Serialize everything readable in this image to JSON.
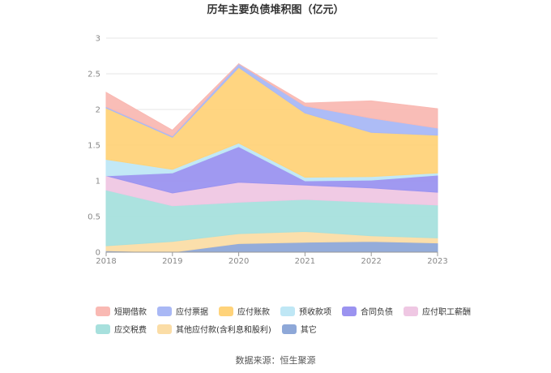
{
  "chart_data": {
    "type": "area",
    "stacked": true,
    "title": "历年主要负债堆积图（亿元）",
    "x": [
      "2018",
      "2019",
      "2020",
      "2021",
      "2022",
      "2023"
    ],
    "ylim": [
      0,
      3
    ],
    "yticks": [
      "0",
      "0.5",
      "1",
      "1.5",
      "2",
      "2.5",
      "3"
    ],
    "grid": true,
    "legend_position": "bottom",
    "series": [
      {
        "name": "其它",
        "color": "#8ea8d8",
        "values": [
          0.02,
          0.0,
          0.12,
          0.14,
          0.15,
          0.13
        ]
      },
      {
        "name": "其他应付款(含利息和股利)",
        "color": "#fbdda6",
        "values": [
          0.07,
          0.15,
          0.14,
          0.15,
          0.08,
          0.07
        ]
      },
      {
        "name": "应交税费",
        "color": "#a7e0dd",
        "values": [
          0.78,
          0.5,
          0.44,
          0.45,
          0.47,
          0.46
        ]
      },
      {
        "name": "应付职工薪酬",
        "color": "#efc7e3",
        "values": [
          0.2,
          0.18,
          0.28,
          0.2,
          0.2,
          0.18
        ]
      },
      {
        "name": "合同负债",
        "color": "#9b93f0",
        "values": [
          0.0,
          0.28,
          0.5,
          0.06,
          0.11,
          0.24
        ]
      },
      {
        "name": "预收款项",
        "color": "#bfe7f5",
        "values": [
          0.23,
          0.05,
          0.05,
          0.05,
          0.05,
          0.03
        ]
      },
      {
        "name": "应付账款",
        "color": "#ffd37a",
        "values": [
          0.72,
          0.45,
          1.06,
          0.9,
          0.62,
          0.53
        ]
      },
      {
        "name": "应付票据",
        "color": "#a9b8f5",
        "values": [
          0.02,
          0.02,
          0.05,
          0.1,
          0.2,
          0.1
        ]
      },
      {
        "name": "短期借款",
        "color": "#f9b9b3",
        "values": [
          0.2,
          0.08,
          0.0,
          0.04,
          0.24,
          0.27
        ]
      }
    ],
    "legend_order": [
      "短期借款",
      "应付票据",
      "应付账款",
      "预收款项",
      "合同负债",
      "应付职工薪酬",
      "应交税费",
      "其他应付款(含利息和股利)",
      "其它"
    ]
  },
  "footer": {
    "source": "数据来源：恒生聚源"
  }
}
